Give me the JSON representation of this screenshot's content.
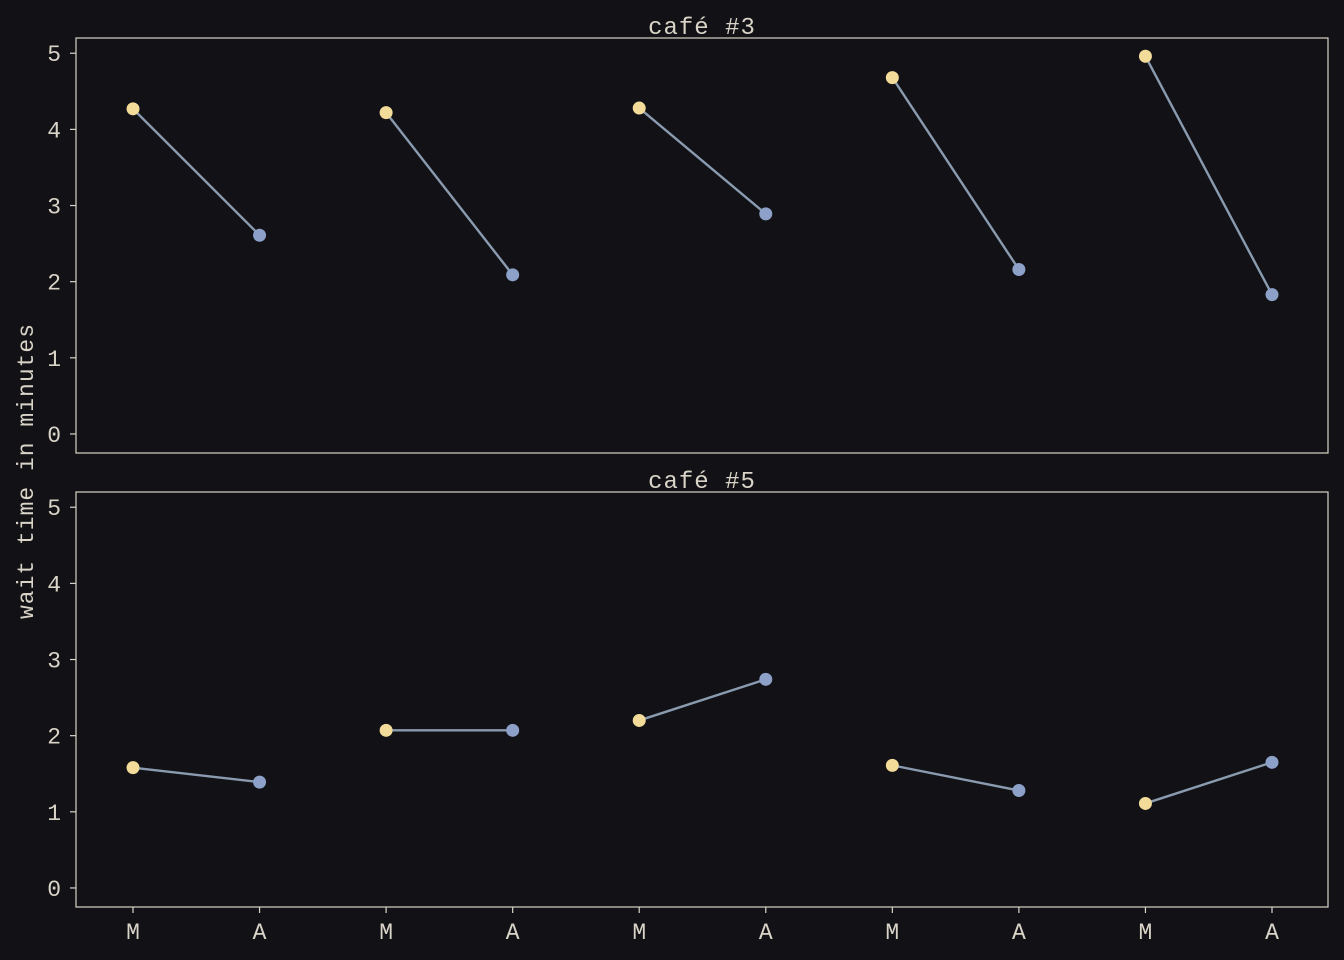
{
  "chart_data": {
    "type": "line",
    "ylabel": "wait time in minutes",
    "x_categories": [
      "M",
      "A",
      "M",
      "A",
      "M",
      "A",
      "M",
      "A",
      "M",
      "A"
    ],
    "ylim": [
      -0.25,
      5.2
    ],
    "yticks": [
      0,
      1,
      2,
      3,
      4,
      5
    ],
    "grid": false,
    "colors": {
      "background": "#111116",
      "axes_face": "#111116",
      "frame": "#d9d4c7",
      "text": "#d9d4c7",
      "line": "#8a9bb0",
      "morning_marker": "#f3dc9a",
      "afternoon_marker": "#8ca0c8"
    },
    "panels": [
      {
        "title": "café #3",
        "pairs": [
          {
            "morning": 4.27,
            "afternoon": 2.61
          },
          {
            "morning": 4.22,
            "afternoon": 2.09
          },
          {
            "morning": 4.28,
            "afternoon": 2.89
          },
          {
            "morning": 4.68,
            "afternoon": 2.16
          },
          {
            "morning": 4.96,
            "afternoon": 1.83
          }
        ]
      },
      {
        "title": "café #5",
        "pairs": [
          {
            "morning": 1.58,
            "afternoon": 1.39
          },
          {
            "morning": 2.07,
            "afternoon": 2.07
          },
          {
            "morning": 2.2,
            "afternoon": 2.74
          },
          {
            "morning": 1.61,
            "afternoon": 1.28
          },
          {
            "morning": 1.11,
            "afternoon": 1.65
          }
        ]
      }
    ]
  }
}
